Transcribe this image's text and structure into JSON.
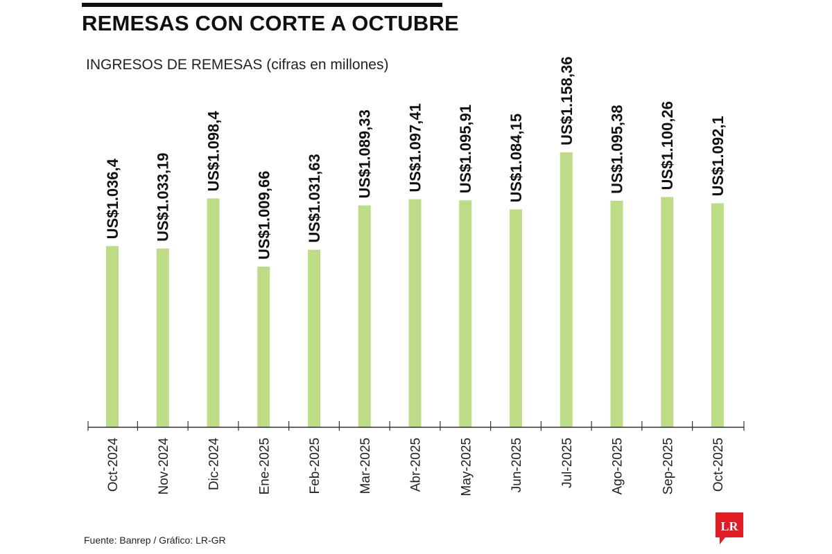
{
  "header": {
    "title": "REMESAS CON CORTE A OCTUBRE",
    "subtitle": "INGRESOS DE REMESAS (cifras en millones)"
  },
  "footer": {
    "source": "Fuente: Banrep / Gráfico: LR-GR"
  },
  "logo": {
    "text": "LR"
  },
  "colors": {
    "bar": "#bcdc86",
    "axis": "#333333",
    "label": "#111111",
    "logo": "#e31b23"
  },
  "chart_data": {
    "type": "bar",
    "categories": [
      "Oct-2024",
      "Nov-2024",
      "Dic-2024",
      "Ene-2025",
      "Feb-2025",
      "Mar-2025",
      "Abr-2025",
      "May-2025",
      "Jun-2025",
      "Jul-2025",
      "Ago-2025",
      "Sep-2025",
      "Oct-2025"
    ],
    "values": [
      1036.4,
      1033.19,
      1098.4,
      1009.66,
      1031.63,
      1089.33,
      1097.41,
      1095.91,
      1084.15,
      1158.36,
      1095.38,
      1100.26,
      1092.1
    ],
    "data_labels": [
      "US$1.036,4",
      "US$1.033,19",
      "US$1.098,4",
      "US$1.009,66",
      "US$1.031,63",
      "US$1.089,33",
      "US$1.097,41",
      "US$1.095,91",
      "US$1.084,15",
      "US$1.158,36",
      "US$1.095,38",
      "US$1.100,26",
      "US$1.092,1"
    ],
    "title": "REMESAS CON CORTE A OCTUBRE",
    "ylabel": "INGRESOS DE REMESAS (cifras en millones)",
    "xlabel": "",
    "ylim": [
      0,
      1158.36
    ],
    "grid": false,
    "legend": "none"
  }
}
